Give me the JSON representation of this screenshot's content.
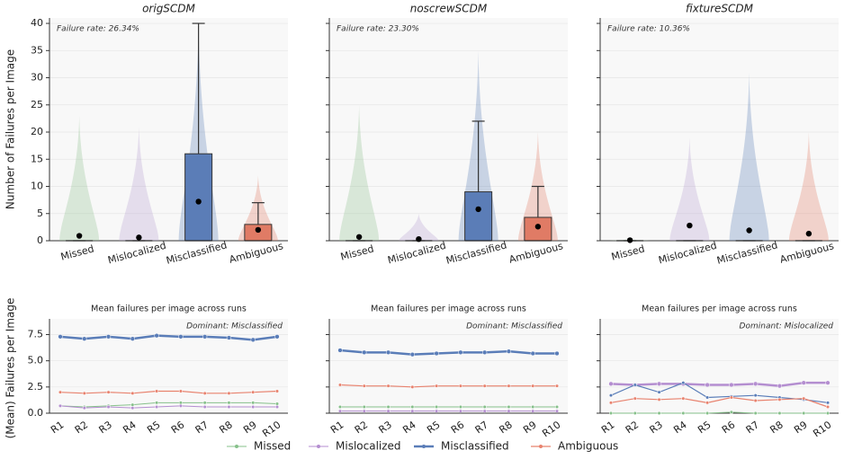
{
  "chart_data": [
    {
      "type": "box",
      "title": "origSCDM",
      "annotation": "Failure rate: 26.34%",
      "ylabel": "Number of Failures per Image",
      "categories": [
        "Missed",
        "Mislocalized",
        "Misclassified",
        "Ambiguous"
      ],
      "colors": [
        "#8fbf8f",
        "#b79fd0",
        "#5b7db7",
        "#e07b65"
      ],
      "q1": [
        0,
        0,
        0,
        0
      ],
      "median": [
        0,
        0,
        0,
        0
      ],
      "q3": [
        0,
        0,
        16,
        3
      ],
      "whisker_high": [
        0,
        0,
        40,
        7
      ],
      "mean": [
        0.9,
        0.6,
        7.2,
        2.0
      ],
      "violin_top": [
        23,
        21,
        40,
        12
      ],
      "ylim": [
        0,
        41
      ],
      "yticks": [
        0,
        5,
        10,
        15,
        20,
        25,
        30,
        35,
        40
      ],
      "grid": true
    },
    {
      "type": "box",
      "title": "noscrewSCDM",
      "annotation": "Failure rate: 23.30%",
      "categories": [
        "Missed",
        "Mislocalized",
        "Misclassified",
        "Ambiguous"
      ],
      "colors": [
        "#8fbf8f",
        "#b79fd0",
        "#5b7db7",
        "#e07b65"
      ],
      "q1": [
        0,
        0,
        0,
        0
      ],
      "median": [
        0,
        0,
        0,
        0
      ],
      "q3": [
        0,
        0,
        9,
        4.3
      ],
      "whisker_high": [
        0,
        0,
        22,
        10
      ],
      "mean": [
        0.7,
        0.3,
        5.8,
        2.6
      ],
      "violin_top": [
        25,
        5,
        35,
        20
      ],
      "ylim": [
        0,
        41
      ],
      "yticks": [
        0,
        5,
        10,
        15,
        20,
        25,
        30,
        35,
        40
      ],
      "grid": true
    },
    {
      "type": "box",
      "title": "fixtureSCDM",
      "annotation": "Failure rate: 10.36%",
      "categories": [
        "Missed",
        "Mislocalized",
        "Misclassified",
        "Ambiguous"
      ],
      "colors": [
        "#8fbf8f",
        "#b79fd0",
        "#5b7db7",
        "#e07b65"
      ],
      "q1": [
        0,
        0,
        0,
        0
      ],
      "median": [
        0,
        0,
        0,
        0
      ],
      "q3": [
        0,
        0,
        0,
        0
      ],
      "whisker_high": [
        0,
        0,
        0,
        0
      ],
      "mean": [
        0.1,
        2.8,
        1.9,
        1.3
      ],
      "violin_top": [
        0.3,
        19,
        31,
        20
      ],
      "ylim": [
        0,
        41
      ],
      "yticks": [
        0,
        5,
        10,
        15,
        20,
        25,
        30,
        35,
        40
      ],
      "grid": true
    },
    {
      "type": "line",
      "title": "Mean failures per image across runs",
      "annotation": "Dominant: Misclassified",
      "ylabel": "(Mean) Failures per Image",
      "categories": [
        "R1",
        "R2",
        "R3",
        "R4",
        "R5",
        "R6",
        "R7",
        "R8",
        "R9",
        "R10"
      ],
      "series": [
        {
          "name": "Missed",
          "color": "#86c08a",
          "width": 1,
          "values": [
            0.7,
            0.6,
            0.7,
            0.8,
            1.0,
            1.0,
            1.0,
            1.0,
            1.0,
            0.9
          ]
        },
        {
          "name": "Mislocalized",
          "color": "#b48ed0",
          "width": 1,
          "values": [
            0.7,
            0.5,
            0.6,
            0.5,
            0.6,
            0.7,
            0.6,
            0.6,
            0.6,
            0.6
          ]
        },
        {
          "name": "Misclassified",
          "color": "#5a7db8",
          "width": 2.5,
          "values": [
            7.3,
            7.1,
            7.3,
            7.1,
            7.4,
            7.3,
            7.3,
            7.2,
            7.0,
            7.3
          ]
        },
        {
          "name": "Ambiguous",
          "color": "#e8826e",
          "width": 1.2,
          "values": [
            2.0,
            1.9,
            2.0,
            1.9,
            2.1,
            2.1,
            1.9,
            1.9,
            2.0,
            2.1
          ]
        }
      ],
      "ylim": [
        0,
        9
      ],
      "yticks": [
        {
          "value": 0,
          "label": "0.0"
        },
        {
          "value": 2.5,
          "label": "2.5"
        },
        {
          "value": 5,
          "label": "5.0"
        },
        {
          "value": 7.5,
          "label": "7.5"
        }
      ],
      "grid": true
    },
    {
      "type": "line",
      "title": "Mean failures per image across runs",
      "annotation": "Dominant: Misclassified",
      "categories": [
        "R1",
        "R2",
        "R3",
        "R4",
        "R5",
        "R6",
        "R7",
        "R8",
        "R9",
        "R10"
      ],
      "series": [
        {
          "name": "Missed",
          "color": "#86c08a",
          "width": 1,
          "values": [
            0.6,
            0.6,
            0.6,
            0.6,
            0.6,
            0.6,
            0.6,
            0.6,
            0.6,
            0.6
          ]
        },
        {
          "name": "Mislocalized",
          "color": "#b48ed0",
          "width": 1,
          "values": [
            0.2,
            0.2,
            0.2,
            0.2,
            0.2,
            0.2,
            0.2,
            0.2,
            0.2,
            0.2
          ]
        },
        {
          "name": "Misclassified",
          "color": "#5a7db8",
          "width": 2.5,
          "values": [
            6.0,
            5.8,
            5.8,
            5.6,
            5.7,
            5.8,
            5.8,
            5.9,
            5.7,
            5.7
          ]
        },
        {
          "name": "Ambiguous",
          "color": "#e8826e",
          "width": 1.2,
          "values": [
            2.7,
            2.6,
            2.6,
            2.5,
            2.6,
            2.6,
            2.6,
            2.6,
            2.6,
            2.6
          ]
        }
      ],
      "ylim": [
        0,
        9
      ],
      "yticks": [
        0,
        2.5,
        5,
        7.5
      ],
      "grid": true
    },
    {
      "type": "line",
      "title": "Mean failures per image across runs",
      "annotation": "Dominant: Mislocalized",
      "categories": [
        "R1",
        "R2",
        "R3",
        "R4",
        "R5",
        "R6",
        "R7",
        "R8",
        "R9",
        "R10"
      ],
      "series": [
        {
          "name": "Missed",
          "color": "#86c08a",
          "width": 1,
          "values": [
            0.0,
            0.0,
            0.0,
            0.0,
            0.0,
            0.1,
            0.0,
            0.0,
            0.0,
            0.0
          ]
        },
        {
          "name": "Mislocalized",
          "color": "#b48ed0",
          "width": 2.5,
          "values": [
            2.8,
            2.7,
            2.8,
            2.8,
            2.7,
            2.7,
            2.8,
            2.6,
            2.9,
            2.9
          ]
        },
        {
          "name": "Misclassified",
          "color": "#5a7db8",
          "width": 1.2,
          "values": [
            1.7,
            2.7,
            2.0,
            2.9,
            1.5,
            1.6,
            1.7,
            1.5,
            1.3,
            1.0
          ]
        },
        {
          "name": "Ambiguous",
          "color": "#e8826e",
          "width": 1.2,
          "values": [
            1.0,
            1.4,
            1.3,
            1.4,
            1.0,
            1.5,
            1.2,
            1.3,
            1.4,
            0.6
          ]
        }
      ],
      "ylim": [
        0,
        9
      ],
      "yticks": [
        0,
        2.5,
        5,
        7.5
      ],
      "grid": true
    }
  ]
}
